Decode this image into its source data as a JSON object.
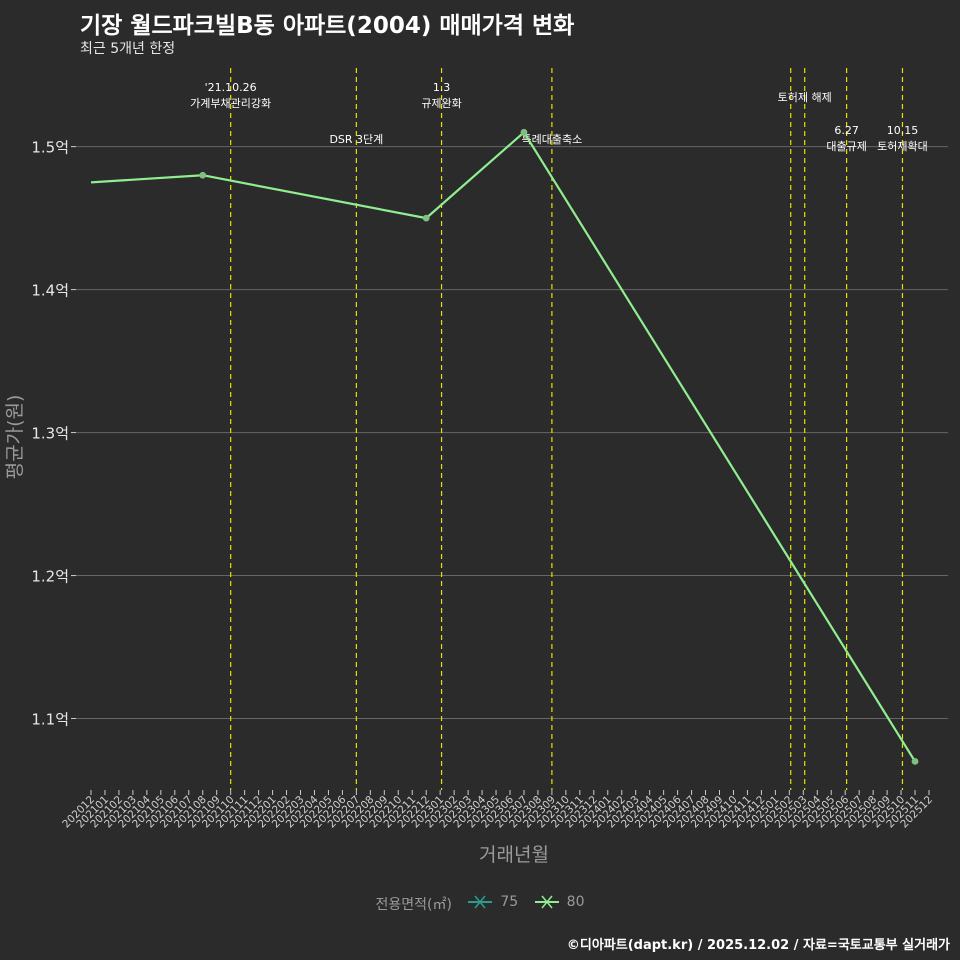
{
  "title": "기장 월드파크빌B동 아파트(2004) 매매가격 변화",
  "subtitle": "최근 5개년 한정",
  "footer": "©디아파트(dapt.kr) / 2025.12.02 / 자료=국토교통부 실거래가",
  "legend": {
    "title": "전용면적(㎡)",
    "items": [
      {
        "label": "75",
        "color": "#2a9d8f"
      },
      {
        "label": "80",
        "color": "#90ee90"
      }
    ]
  },
  "chart_data": {
    "type": "line",
    "xlabel": "거래년월",
    "ylabel": "평균가(원)",
    "ylim": [
      1.05,
      1.555
    ],
    "yticks": [
      {
        "value": 1.1,
        "label": "1.1억"
      },
      {
        "value": 1.2,
        "label": "1.2억"
      },
      {
        "value": 1.3,
        "label": "1.3억"
      },
      {
        "value": 1.4,
        "label": "1.4억"
      },
      {
        "value": 1.5,
        "label": "1.5억"
      }
    ],
    "categories": [
      "202012",
      "202101",
      "202102",
      "202103",
      "202104",
      "202105",
      "202106",
      "202107",
      "202108",
      "202109",
      "202110",
      "202111",
      "202112",
      "202201",
      "202202",
      "202203",
      "202204",
      "202205",
      "202206",
      "202207",
      "202208",
      "202209",
      "202210",
      "202211",
      "202212",
      "202301",
      "202302",
      "202303",
      "202304",
      "202305",
      "202306",
      "202307",
      "202308",
      "202309",
      "202310",
      "202311",
      "202312",
      "202401",
      "202402",
      "202403",
      "202404",
      "202405",
      "202406",
      "202407",
      "202408",
      "202409",
      "202410",
      "202411",
      "202412",
      "202501",
      "202502",
      "202503",
      "202504",
      "202505",
      "202506",
      "202507",
      "202508",
      "202509",
      "202510",
      "202511",
      "202512"
    ],
    "series": [
      {
        "name": "80",
        "color": "#90ee90",
        "points": [
          {
            "x": "202012",
            "y": 1.475,
            "marker": false
          },
          {
            "x": "202108",
            "y": 1.48,
            "marker": true
          },
          {
            "x": "202212",
            "y": 1.45,
            "marker": true
          },
          {
            "x": "202307",
            "y": 1.51,
            "marker": true
          },
          {
            "x": "202511",
            "y": 1.07,
            "marker": true
          }
        ]
      }
    ],
    "events": [
      {
        "x": 10.0,
        "lines": [
          "'21.10.26",
          "가계부채관리강화"
        ],
        "level": 0
      },
      {
        "x": 19.0,
        "lines": [
          "DSR 3단계"
        ],
        "level": 2
      },
      {
        "x": 25.1,
        "lines": [
          "1.3",
          "규제완화"
        ],
        "level": 0
      },
      {
        "x": 33.0,
        "lines": [
          "특례대출축소"
        ],
        "level": 2
      },
      {
        "x": 50.1,
        "lines": [],
        "level": 0
      },
      {
        "x": 51.1,
        "lines": [
          "토허제 해제"
        ],
        "level": 1
      },
      {
        "x": 54.1,
        "lines": [
          "6.27",
          "대출규제"
        ],
        "level": 3
      },
      {
        "x": 58.1,
        "lines": [
          "10.15",
          "토허제확대"
        ],
        "level": 3
      }
    ]
  }
}
